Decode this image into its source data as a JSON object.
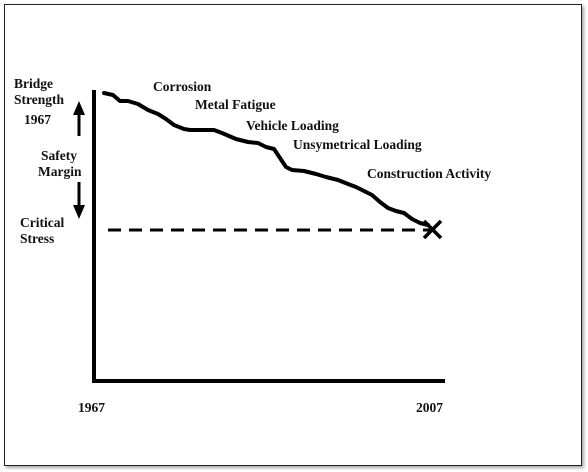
{
  "left_labels": {
    "bridge_strength": [
      "Bridge",
      "Strength",
      "1967"
    ],
    "safety_margin": [
      "Safety",
      "Margin"
    ],
    "critical_stress": [
      "Critical",
      "Stress"
    ]
  },
  "x_axis": {
    "start_label": "1967",
    "end_label": "2007"
  },
  "factors": [
    "Corrosion",
    "Metal Fatigue",
    "Vehicle Loading",
    "Unsymetrical Loading",
    "Construction Activity"
  ]
}
